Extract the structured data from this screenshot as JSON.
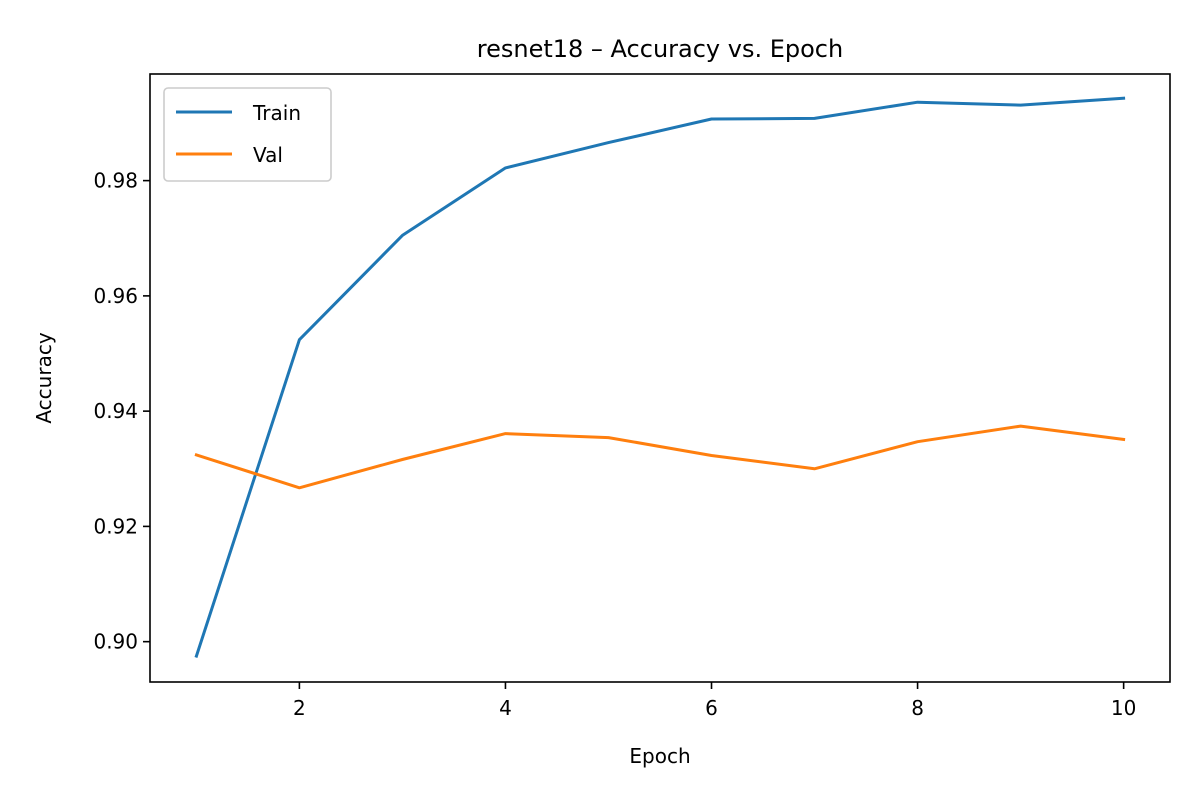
{
  "chart_data": {
    "type": "line",
    "title": "resnet18 – Accuracy vs. Epoch",
    "xlabel": "Epoch",
    "ylabel": "Accuracy",
    "x": [
      1,
      2,
      3,
      4,
      5,
      6,
      7,
      8,
      9,
      10
    ],
    "xlim": [
      0.55,
      10.45
    ],
    "ylim": [
      0.893,
      0.9985
    ],
    "xticks": [
      2,
      4,
      6,
      8,
      10
    ],
    "xtick_labels": [
      "2",
      "4",
      "6",
      "8",
      "10"
    ],
    "yticks": [
      0.9,
      0.92,
      0.94,
      0.96,
      0.98
    ],
    "ytick_labels": [
      "0.90",
      "0.92",
      "0.94",
      "0.96",
      "0.98"
    ],
    "grid": false,
    "legend_position": "top-left",
    "series": [
      {
        "name": "Train",
        "color": "#1f77b4",
        "values": [
          0.8975,
          0.9524,
          0.9705,
          0.9822,
          0.9866,
          0.9907,
          0.9908,
          0.9936,
          0.9931,
          0.9943
        ]
      },
      {
        "name": "Val",
        "color": "#ff7f0e",
        "values": [
          0.9324,
          0.9267,
          0.9316,
          0.9361,
          0.9354,
          0.9323,
          0.93,
          0.9347,
          0.9374,
          0.9351
        ]
      }
    ]
  }
}
